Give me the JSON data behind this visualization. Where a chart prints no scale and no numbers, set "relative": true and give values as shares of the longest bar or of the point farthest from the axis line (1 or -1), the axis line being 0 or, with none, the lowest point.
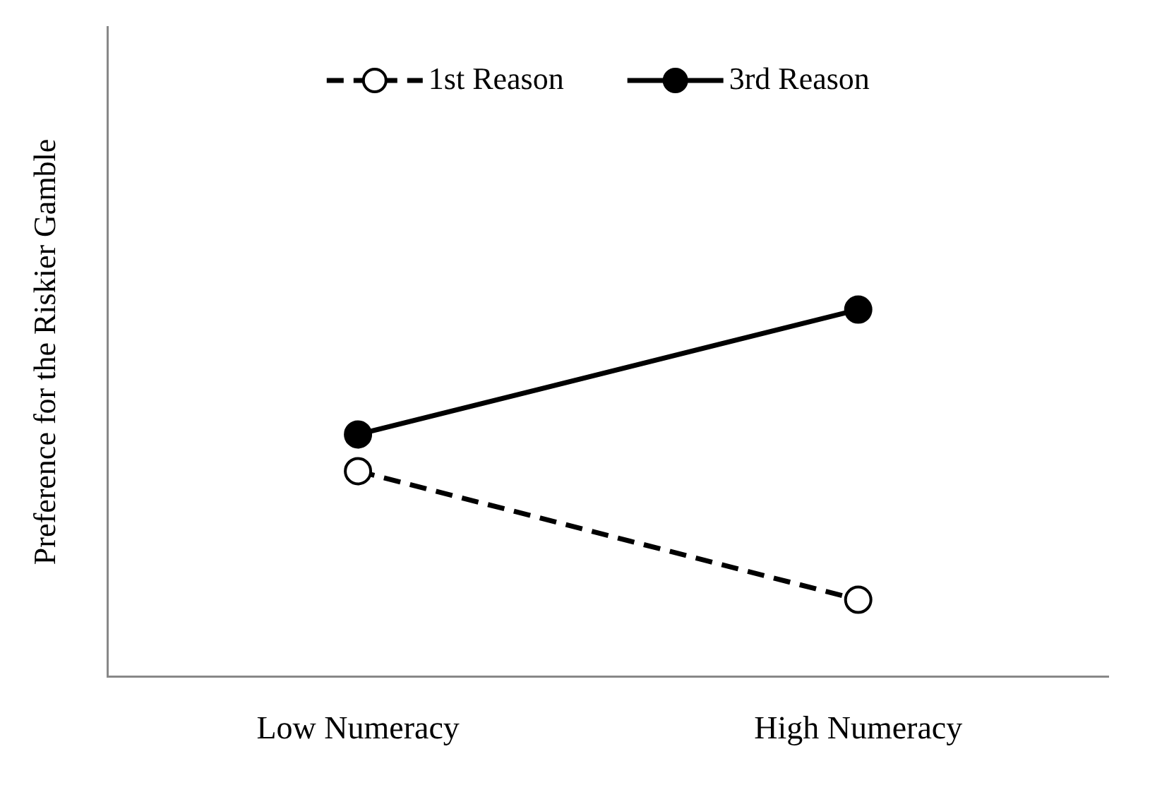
{
  "chart_data": {
    "type": "line",
    "ylabel": "Preference for the Riskier Gamble",
    "categories": [
      "Low Numeracy",
      "High Numeracy"
    ],
    "relative": true,
    "legend": "top",
    "marker": "circle",
    "grid": false,
    "series": [
      {
        "name": "1st Reason",
        "color": "#000000",
        "line_style": "dashed",
        "values": [
          0.56,
          0.21
        ]
      },
      {
        "name": "3rd Reason",
        "color": "#000000",
        "line_style": "solid",
        "values": [
          0.66,
          1
        ]
      }
    ]
  }
}
